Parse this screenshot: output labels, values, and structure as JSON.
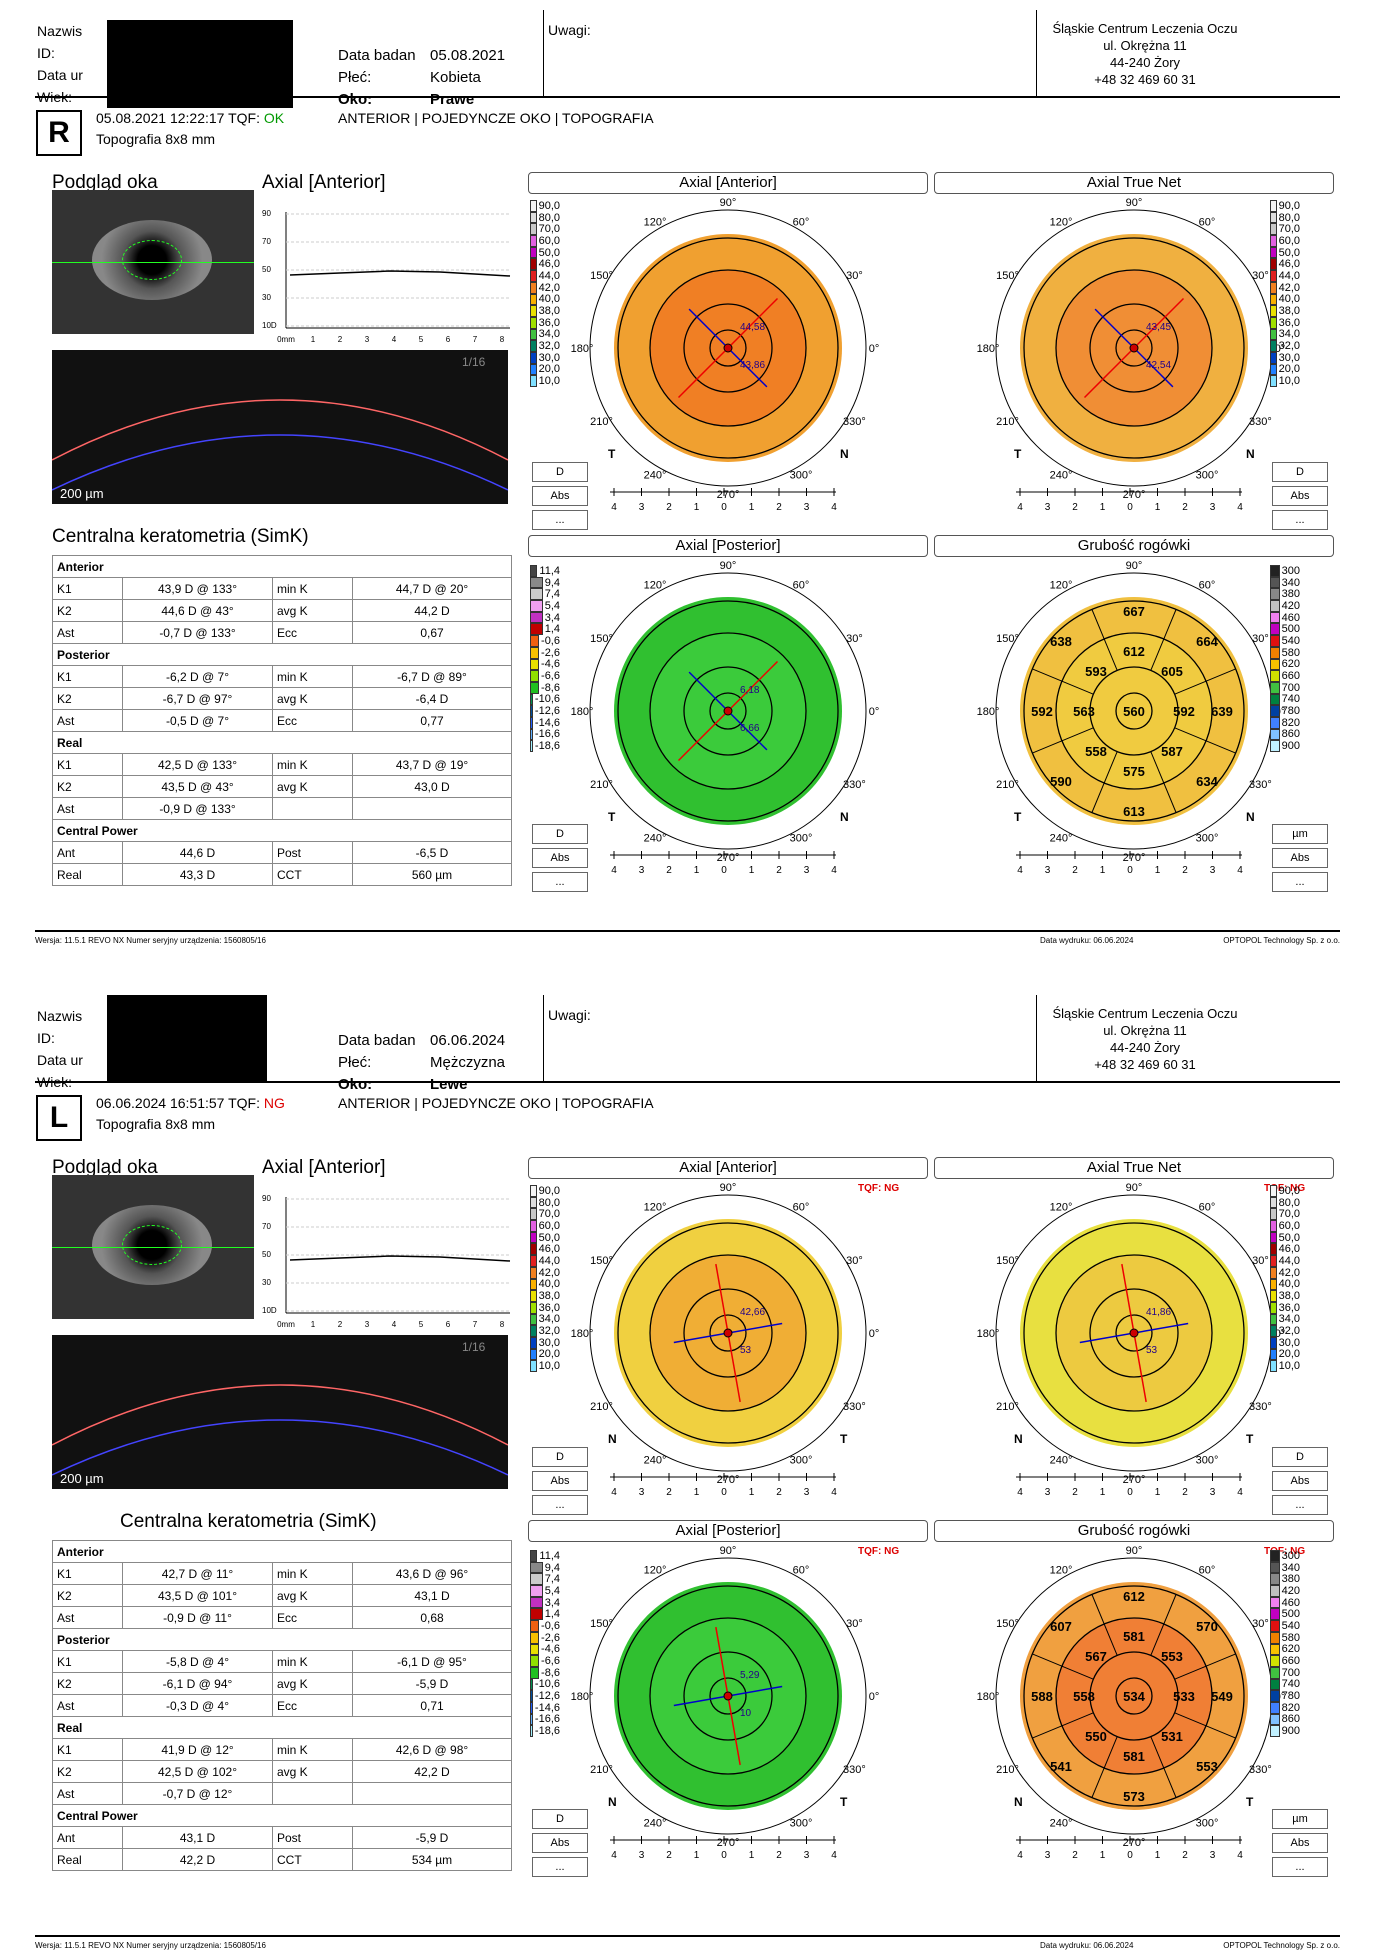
{
  "labels": {
    "surname": "Nazwis",
    "id": "ID:",
    "dob": "Data ur",
    "age": "Wiek:",
    "exam_date": "Data badan",
    "sex": "Płeć:",
    "eye": "Oko:",
    "notes": "Uwagi:",
    "tqf": "TQF:",
    "mode": "ANTERIOR | POJEDYNCZE OKO | TOPOGRAFIA",
    "topo": "Topografia  8x8 mm",
    "preview": "Podgląd oka",
    "axial_anterior": "Axial [Anterior]",
    "simk": "Centralna keratometria (SimK)",
    "anterior": "Anterior",
    "posterior": "Posterior",
    "real": "Real",
    "central_power": "Central Power",
    "scale": "200 µm",
    "oct_index": "1/16"
  },
  "clinic": [
    "Śląskie Centrum Leczenia Oczu",
    "ul. Okrężna 11",
    "44-240 Żory",
    "+48 32 469 60 31"
  ],
  "footer": {
    "version": "Wersja: 11.5.1   REVO NX   Numer seryjny urządzenia: 1560805/16",
    "vendor": "OPTOPOL Technology Sp. z o.o.",
    "print_date": "Data wydruku: 06.06.2024"
  },
  "map_titles": [
    "Axial [Anterior]",
    "Axial True Net",
    "Axial [Posterior]",
    "Grubość rogówki"
  ],
  "scale_axial": [
    "90,0",
    "80,0",
    "70,0",
    "60,0",
    "50,0",
    "46,0",
    "44,0",
    "42,0",
    "40,0",
    "38,0",
    "36,0",
    "34,0",
    "32,0",
    "30,0",
    "20,0",
    "10,0"
  ],
  "scale_post": [
    "11,4",
    "9,4",
    "7,4",
    "5,4",
    "3,4",
    "1,4",
    "-0,6",
    "-2,6",
    "-4,6",
    "-6,6",
    "-8,6",
    "-10,6",
    "-12,6",
    "-14,6",
    "-16,6",
    "-18,6"
  ],
  "scale_pach": [
    "300",
    "340",
    "380",
    "420",
    "460",
    "500",
    "540",
    "580",
    "620",
    "660",
    "700",
    "740",
    "780",
    "820",
    "860",
    "900"
  ],
  "angles": {
    "a90": "90°",
    "a60": "60°",
    "a30": "30°",
    "a0": "0°",
    "a330": "330°",
    "a300": "300°",
    "a270": "270°",
    "a240": "240°",
    "a210": "210°",
    "a180": "180°",
    "a150": "150°",
    "a120": "120°"
  },
  "ticks": [
    "4",
    "3",
    "2",
    "1",
    "0",
    "1",
    "2",
    "3",
    "4"
  ],
  "btns": {
    "d": "D",
    "abs": "Abs",
    "more": "...",
    "um": "µm"
  },
  "r1": {
    "date": "05.08.2021",
    "sex": "Kobieta",
    "eye": "Prawe",
    "eye_code": "R",
    "datetime": "05.08.2021 12:22:17",
    "tqf": "OK",
    "tq_ng": "",
    "mvals": [
      "44,58",
      "43,86",
      "43,45",
      "42,54",
      "6,18",
      "6,66"
    ],
    "pach": [
      "667",
      "638",
      "612",
      "664",
      "593",
      "605",
      "592",
      "563",
      "560",
      "592",
      "639",
      "558",
      "587",
      "590",
      "575",
      "634",
      "613"
    ],
    "rows": [
      [
        "K1",
        "43,9 D  @ 133°",
        "min K",
        "44,7 D  @ 20°"
      ],
      [
        "K2",
        "44,6 D  @ 43°",
        "avg K",
        "44,2 D"
      ],
      [
        "Ast",
        "-0,7 D  @ 133°",
        "Ecc",
        "0,67"
      ],
      [
        "K1",
        "-6,2 D  @ 7°",
        "min K",
        "-6,7 D  @ 89°"
      ],
      [
        "K2",
        "-6,7 D  @ 97°",
        "avg K",
        "-6,4 D"
      ],
      [
        "Ast",
        "-0,5 D  @ 7°",
        "Ecc",
        "0,77"
      ],
      [
        "K1",
        "42,5 D  @ 133°",
        "min K",
        "43,7 D  @ 19°"
      ],
      [
        "K2",
        "43,5 D  @ 43°",
        "avg K",
        "43,0 D"
      ],
      [
        "Ast",
        "-0,9 D  @ 133°",
        "",
        ""
      ],
      [
        "Ant",
        "44,6 D",
        "Post",
        "-6,5 D"
      ],
      [
        "Real",
        "43,3 D",
        "CCT",
        "560 µm"
      ]
    ]
  },
  "r2": {
    "date": "06.06.2024",
    "sex": "Mężczyzna",
    "eye": "Lewe",
    "eye_code": "L",
    "datetime": "06.06.2024 16:51:57",
    "tqf": "NG",
    "tq_ng": "TQF: NG",
    "mvals": [
      "42,66",
      "53",
      "41,86",
      "53",
      "5,29",
      "10"
    ],
    "pach": [
      "612",
      "607",
      "581",
      "570",
      "567",
      "553",
      "588",
      "558",
      "534",
      "533",
      "549",
      "550",
      "531",
      "541",
      "581",
      "553",
      "573"
    ],
    "rows": [
      [
        "K1",
        "42,7 D  @ 11°",
        "min K",
        "43,6 D  @ 96°"
      ],
      [
        "K2",
        "43,5 D  @ 101°",
        "avg K",
        "43,1 D"
      ],
      [
        "Ast",
        "-0,9 D  @ 11°",
        "Ecc",
        "0,68"
      ],
      [
        "K1",
        "-5,8 D  @ 4°",
        "min K",
        "-6,1 D  @ 95°"
      ],
      [
        "K2",
        "-6,1 D  @ 94°",
        "avg K",
        "-5,9 D"
      ],
      [
        "Ast",
        "-0,3 D  @ 4°",
        "Ecc",
        "0,71"
      ],
      [
        "K1",
        "41,9 D  @ 12°",
        "min K",
        "42,6 D  @ 98°"
      ],
      [
        "K2",
        "42,5 D  @ 102°",
        "avg K",
        "42,2 D"
      ],
      [
        "Ast",
        "-0,7 D  @ 12°",
        "",
        ""
      ],
      [
        "Ant",
        "43,1 D",
        "Post",
        "-5,9 D"
      ],
      [
        "Real",
        "42,2 D",
        "CCT",
        "534 µm"
      ]
    ]
  }
}
